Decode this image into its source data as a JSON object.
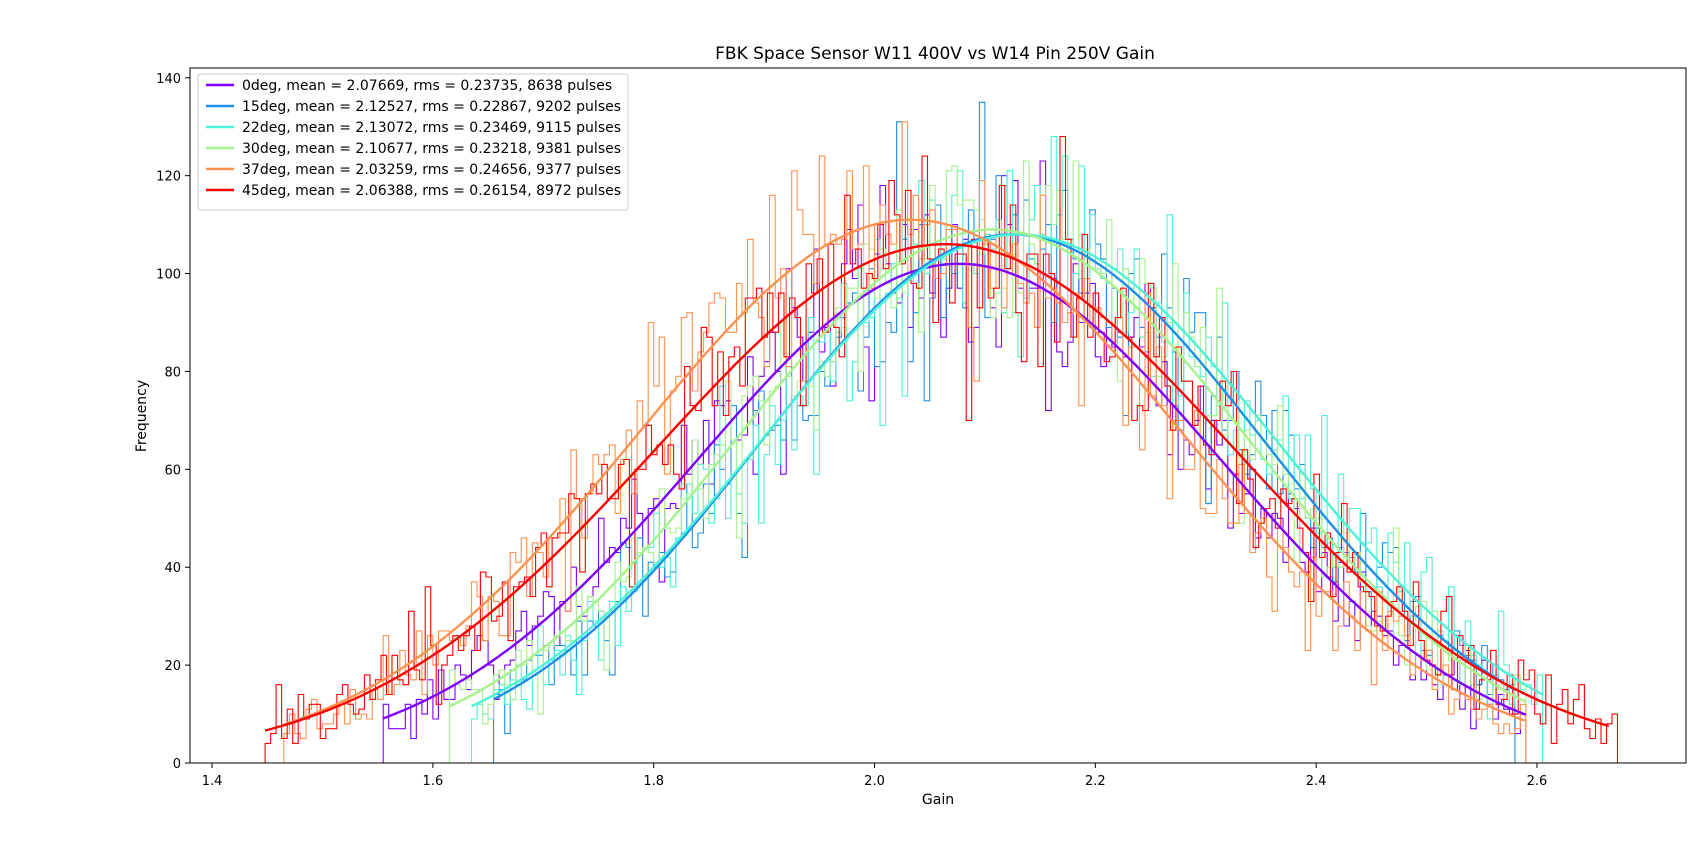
{
  "chart_data": {
    "type": "line",
    "title": "FBK Space Sensor W11 400V vs W14 Pin 250V Gain",
    "xlabel": "Gain",
    "ylabel": "Frequency",
    "xlim": [
      1.38,
      2.735
    ],
    "ylim": [
      0,
      142
    ],
    "xticks": [
      1.4,
      1.6,
      1.8,
      2.0,
      2.2,
      2.4,
      2.6
    ],
    "xtick_labels": [
      "1.4",
      "1.6",
      "1.8",
      "2.0",
      "2.2",
      "2.4",
      "2.6"
    ],
    "yticks": [
      0,
      20,
      40,
      60,
      80,
      100,
      120,
      140
    ],
    "ytick_labels": [
      "0",
      "20",
      "40",
      "60",
      "80",
      "100",
      "120",
      "140"
    ],
    "grid": false,
    "legend_position": "top-left",
    "series": [
      {
        "name": "0deg, mean = 2.07669, rms = 0.23735, 8638 pulses",
        "color": "#7f00ff",
        "mean": 2.07669,
        "rms": 0.23735,
        "fit_amplitude": 102,
        "fit_range": [
          1.555,
          2.59
        ],
        "hist_range": [
          1.555,
          2.59
        ]
      },
      {
        "name": "15deg, mean = 2.12527, rms = 0.22867, 9202 pulses",
        "color": "#1e8fe8",
        "mean": 2.12527,
        "rms": 0.22867,
        "fit_amplitude": 108,
        "fit_range": [
          1.655,
          2.58
        ],
        "hist_range": [
          1.655,
          2.58
        ]
      },
      {
        "name": "22deg, mean = 2.13072, rms = 0.23469, 9115 pulses",
        "color": "#4ef2d6",
        "mean": 2.13072,
        "rms": 0.23469,
        "fit_amplitude": 108,
        "fit_range": [
          1.635,
          2.605
        ],
        "hist_range": [
          1.635,
          2.605
        ]
      },
      {
        "name": "30deg, mean = 2.10677, rms = 0.23218, 9381 pulses",
        "color": "#a6f28c",
        "mean": 2.10677,
        "rms": 0.23218,
        "fit_amplitude": 109,
        "fit_range": [
          1.615,
          2.59
        ],
        "hist_range": [
          1.615,
          2.59
        ]
      },
      {
        "name": "37deg, mean = 2.03259, rms = 0.24656, 9377 pulses",
        "color": "#ff9250",
        "mean": 2.03259,
        "rms": 0.24656,
        "fit_amplitude": 111,
        "fit_range": [
          1.465,
          2.59
        ],
        "hist_range": [
          1.465,
          2.59
        ]
      },
      {
        "name": "45deg, mean = 2.06388, rms = 0.26154, 8972 pulses",
        "color": "#ff0000",
        "mean": 2.06388,
        "rms": 0.26154,
        "fit_amplitude": 106,
        "fit_range": [
          1.448,
          2.665
        ],
        "hist_range": [
          1.448,
          2.675
        ]
      }
    ]
  }
}
